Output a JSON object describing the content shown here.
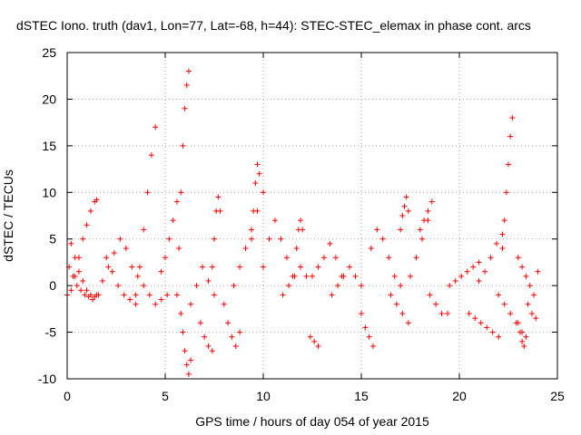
{
  "chart_data": {
    "type": "scatter",
    "title": "dSTEC Iono. truth (dav1, Lon=77, Lat=-68, h=44): STEC-STEC_elemax in phase cont. arcs",
    "xlabel": "GPS time / hours of day 054 of year 2015",
    "ylabel": "dSTEC  / TECUs",
    "xlim": [
      0,
      25
    ],
    "ylim": [
      -10,
      25
    ],
    "xticks": [
      0,
      5,
      10,
      15,
      20,
      25
    ],
    "yticks": [
      -10,
      -5,
      0,
      5,
      10,
      15,
      20,
      25
    ],
    "grid": true,
    "legend": false,
    "marker": "+",
    "series": [
      {
        "color": "#ff0000",
        "arcs": [
          {
            "x": [
              0.0,
              0.2,
              0.4,
              0.6,
              0.8,
              1.0,
              1.2,
              1.4,
              1.5
            ],
            "y": [
              -1.0,
              -0.5,
              1.0,
              3.0,
              5.0,
              6.5,
              8.0,
              9.0,
              9.2
            ]
          },
          {
            "x": [
              0.1,
              0.3,
              0.5,
              0.7,
              0.9,
              1.1,
              1.3
            ],
            "y": [
              2.0,
              1.0,
              0.0,
              -0.5,
              -1.0,
              -1.2,
              -1.5
            ]
          },
          {
            "x": [
              0.2,
              0.4,
              0.6,
              0.8,
              1.0,
              1.2,
              1.4,
              1.6
            ],
            "y": [
              4.5,
              3.0,
              1.5,
              0.5,
              -0.5,
              -1.0,
              -1.2,
              -1.0
            ]
          },
          {
            "x": [
              1.5,
              1.8,
              2.1,
              2.4,
              2.7,
              3.0,
              3.3
            ],
            "y": [
              -1.0,
              0.5,
              2.0,
              3.5,
              5.0,
              4.0,
              2.0
            ]
          },
          {
            "x": [
              2.0,
              2.3,
              2.6,
              2.9,
              3.2,
              3.5
            ],
            "y": [
              3.0,
              1.5,
              0.0,
              -1.0,
              -1.5,
              -2.0
            ]
          },
          {
            "x": [
              3.5,
              3.7,
              3.9,
              4.1,
              4.3,
              4.5
            ],
            "y": [
              -1.0,
              2.0,
              6.0,
              10.0,
              14.0,
              17.0
            ]
          },
          {
            "x": [
              3.6,
              3.9,
              4.2,
              4.5,
              4.8,
              5.1
            ],
            "y": [
              1.0,
              0.0,
              -1.0,
              -2.0,
              -1.5,
              -1.0
            ]
          },
          {
            "x": [
              4.8,
              5.0,
              5.2,
              5.4,
              5.6
            ],
            "y": [
              1.5,
              3.0,
              5.0,
              7.0,
              9.0
            ]
          },
          {
            "x": [
              5.6,
              5.7,
              5.8,
              5.9,
              6.0,
              6.1,
              6.2
            ],
            "y": [
              -1.0,
              4.0,
              10.0,
              15.0,
              19.0,
              21.5,
              23.0
            ]
          },
          {
            "x": [
              5.8,
              5.9,
              6.0,
              6.1,
              6.2,
              6.3
            ],
            "y": [
              -3.0,
              -5.0,
              -7.0,
              -8.5,
              -9.5,
              -8.0
            ]
          },
          {
            "x": [
              6.3,
              6.6,
              6.9,
              7.2,
              7.5
            ],
            "y": [
              -2.0,
              0.0,
              2.0,
              0.5,
              -1.0
            ]
          },
          {
            "x": [
              6.8,
              7.0,
              7.2,
              7.4
            ],
            "y": [
              -4.0,
              -5.5,
              -6.5,
              -7.0
            ]
          },
          {
            "x": [
              7.4,
              7.5,
              7.6,
              7.7,
              7.8
            ],
            "y": [
              2.0,
              5.0,
              8.0,
              9.5,
              8.0
            ]
          },
          {
            "x": [
              8.0,
              8.2,
              8.4,
              8.6,
              8.8
            ],
            "y": [
              -2.0,
              -4.0,
              -5.5,
              -6.5,
              -5.0
            ]
          },
          {
            "x": [
              8.5,
              8.8,
              9.1,
              9.4,
              9.7,
              10.0
            ],
            "y": [
              0.0,
              2.0,
              4.0,
              6.0,
              8.0,
              10.0
            ]
          },
          {
            "x": [
              9.4,
              9.5,
              9.6,
              9.7,
              9.8
            ],
            "y": [
              5.0,
              8.0,
              11.0,
              13.0,
              12.0
            ]
          },
          {
            "x": [
              10.0,
              10.3,
              10.6,
              10.9,
              11.2,
              11.5
            ],
            "y": [
              2.0,
              5.0,
              7.0,
              5.0,
              3.0,
              1.0
            ]
          },
          {
            "x": [
              11.0,
              11.3,
              11.6,
              11.9,
              12.2
            ],
            "y": [
              -1.0,
              0.0,
              1.0,
              2.0,
              1.0
            ]
          },
          {
            "x": [
              11.7,
              11.8,
              11.9,
              12.0
            ],
            "y": [
              4.0,
              6.0,
              7.0,
              6.0
            ]
          },
          {
            "x": [
              12.4,
              12.6,
              12.8
            ],
            "y": [
              -5.5,
              -6.0,
              -6.5
            ]
          },
          {
            "x": [
              12.5,
              12.8,
              13.1,
              13.4,
              13.7,
              14.0
            ],
            "y": [
              1.0,
              2.0,
              3.0,
              4.5,
              3.0,
              1.0
            ]
          },
          {
            "x": [
              13.5,
              13.8,
              14.1,
              14.4,
              14.7,
              15.0
            ],
            "y": [
              -1.0,
              0.0,
              1.0,
              2.0,
              1.0,
              0.0
            ]
          },
          {
            "x": [
              15.0,
              15.2,
              15.4,
              15.6
            ],
            "y": [
              -3.0,
              -4.5,
              -5.5,
              -6.5
            ]
          },
          {
            "x": [
              15.5,
              15.8,
              16.1,
              16.4,
              16.7,
              17.0
            ],
            "y": [
              4.0,
              6.0,
              5.0,
              3.0,
              1.0,
              0.0
            ]
          },
          {
            "x": [
              16.5,
              16.8,
              17.1,
              17.4
            ],
            "y": [
              -1.0,
              -2.0,
              -3.0,
              -4.0
            ]
          },
          {
            "x": [
              17.0,
              17.1,
              17.2,
              17.3,
              17.4
            ],
            "y": [
              6.0,
              7.5,
              8.5,
              9.5,
              8.0
            ]
          },
          {
            "x": [
              17.5,
              17.8,
              18.1,
              18.4
            ],
            "y": [
              1.0,
              3.0,
              5.0,
              7.0
            ]
          },
          {
            "x": [
              18.0,
              18.2,
              18.4,
              18.6
            ],
            "y": [
              6.0,
              7.0,
              8.0,
              9.0
            ]
          },
          {
            "x": [
              18.5,
              18.8,
              19.1,
              19.4
            ],
            "y": [
              -1.0,
              -2.0,
              -3.0,
              -3.0
            ]
          },
          {
            "x": [
              19.5,
              19.8,
              20.1,
              20.4,
              20.7,
              21.0
            ],
            "y": [
              0.0,
              0.5,
              1.0,
              1.5,
              2.0,
              2.5
            ]
          },
          {
            "x": [
              20.5,
              20.8,
              21.1,
              21.4,
              21.7,
              22.0
            ],
            "y": [
              -3.0,
              -3.5,
              -4.0,
              -4.5,
              -5.0,
              -5.5
            ]
          },
          {
            "x": [
              21.0,
              21.3,
              21.6,
              21.9,
              22.2
            ],
            "y": [
              0.5,
              1.5,
              3.0,
              4.5,
              5.5
            ]
          },
          {
            "x": [
              22.2,
              22.3,
              22.4,
              22.5,
              22.6,
              22.7
            ],
            "y": [
              4.0,
              7.0,
              10.0,
              13.0,
              16.0,
              18.0
            ]
          },
          {
            "x": [
              22.0,
              22.3,
              22.6,
              22.9,
              23.2
            ],
            "y": [
              -1.0,
              -2.0,
              -3.0,
              -4.0,
              -5.0
            ]
          },
          {
            "x": [
              23.0,
              23.1,
              23.2,
              23.3,
              23.4
            ],
            "y": [
              -4.0,
              -5.0,
              -6.0,
              -6.5,
              -5.5
            ]
          },
          {
            "x": [
              23.0,
              23.2,
              23.4,
              23.6,
              23.8,
              24.0
            ],
            "y": [
              3.0,
              2.0,
              1.0,
              0.0,
              -1.0,
              1.5
            ]
          },
          {
            "x": [
              23.5,
              23.7,
              23.9
            ],
            "y": [
              -2.0,
              -3.0,
              -3.5
            ]
          }
        ]
      }
    ]
  }
}
